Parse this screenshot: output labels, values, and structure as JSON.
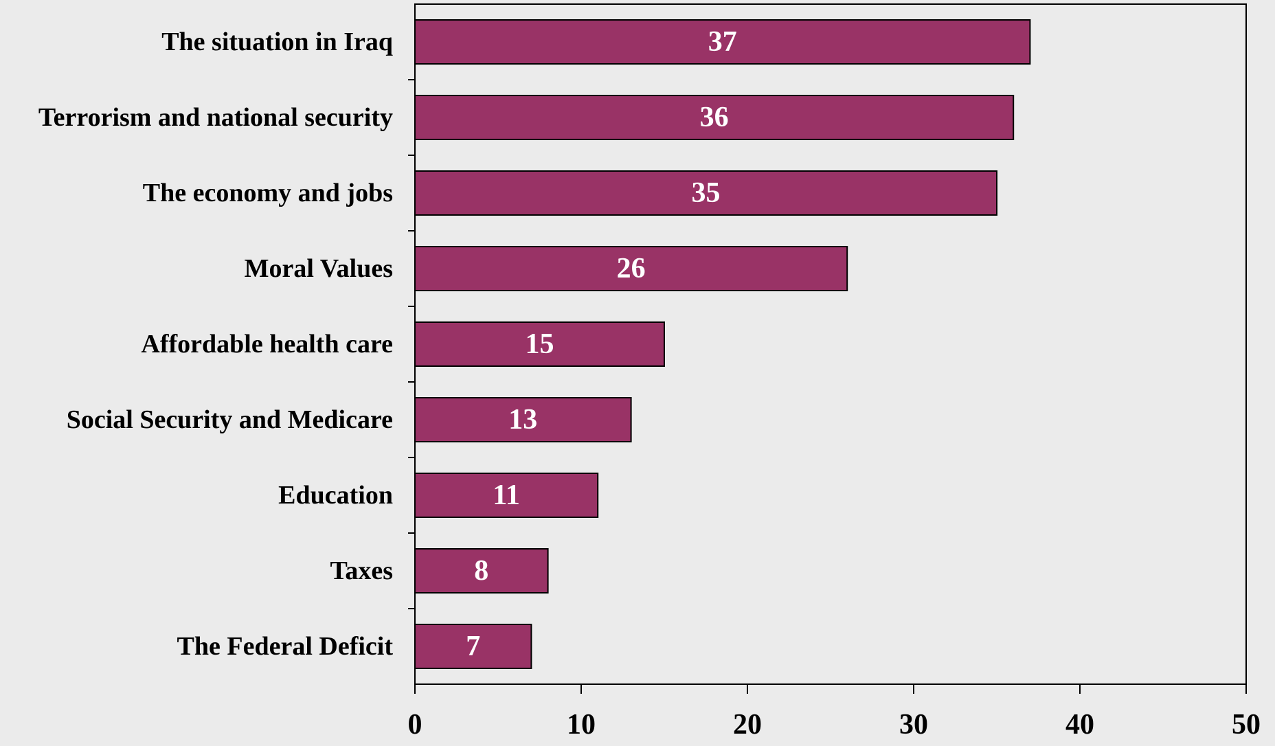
{
  "chart_data": {
    "type": "bar",
    "orientation": "horizontal",
    "categories": [
      "The situation in Iraq",
      "Terrorism and national security",
      "The economy and jobs",
      "Moral Values",
      "Affordable health care",
      "Social Security and Medicare",
      "Education",
      "Taxes",
      "The Federal Deficit"
    ],
    "values": [
      37,
      36,
      35,
      26,
      15,
      13,
      11,
      8,
      7
    ],
    "xlim": [
      0,
      50
    ],
    "xticks": [
      0,
      10,
      20,
      30,
      40,
      50
    ],
    "grid": false,
    "legend": "none",
    "colors": {
      "bar": "#993366",
      "background": "#ebebeb"
    }
  }
}
